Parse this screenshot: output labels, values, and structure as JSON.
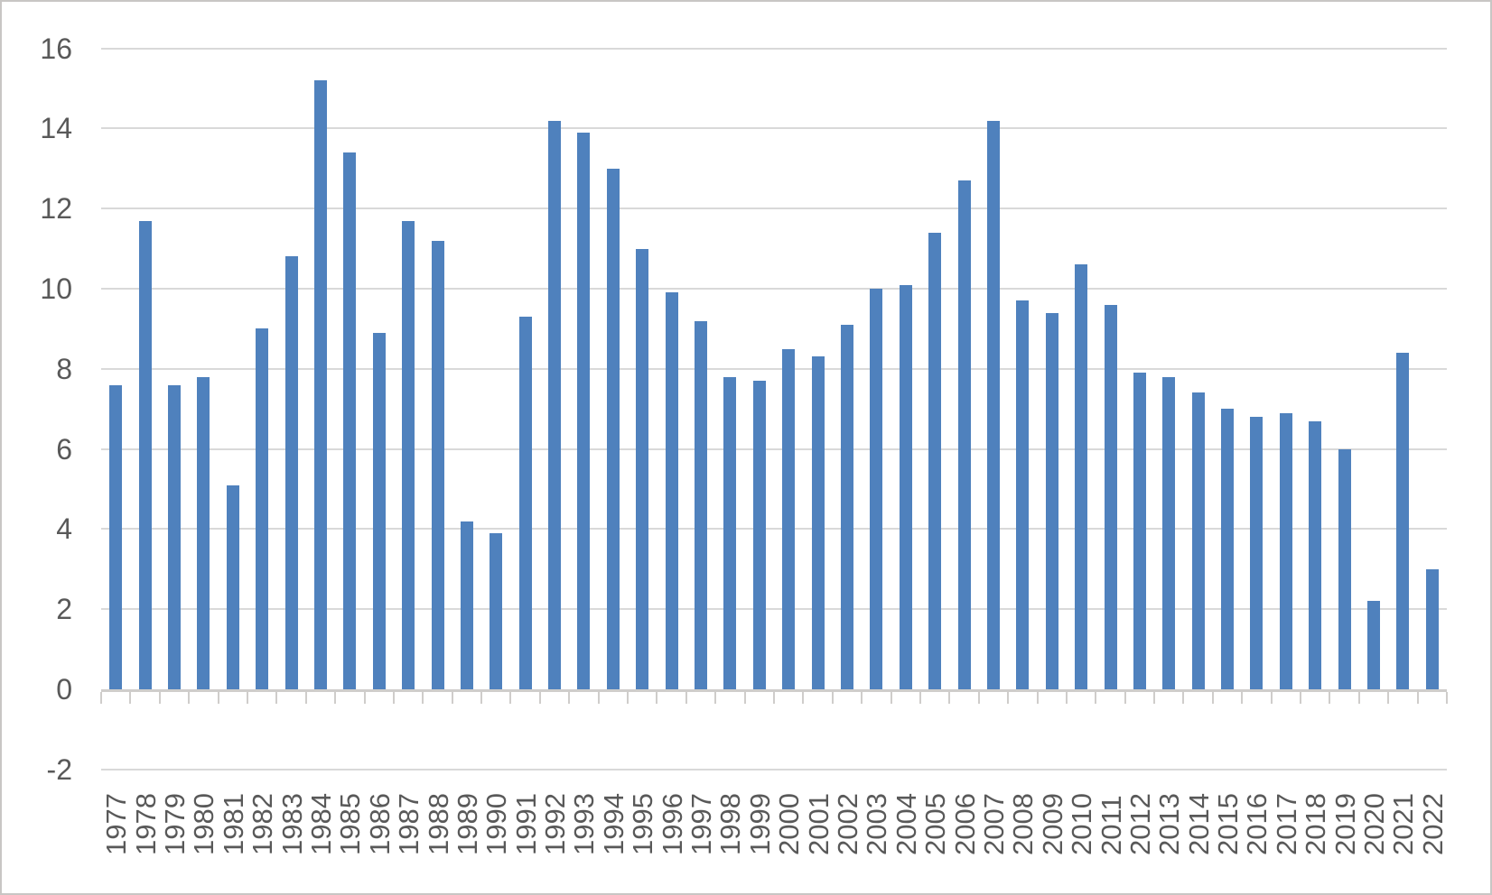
{
  "colors": {
    "bar_fill": "#4F81BD",
    "gridline": "#D9D9D9",
    "axis_line": "#CFCDCB",
    "tick_mark": "#CFCDCB",
    "label_text": "#595959",
    "frame_border": "#C8C6C4",
    "background": "#FFFFFF"
  },
  "chart_data": {
    "type": "bar",
    "title": "",
    "xlabel": "",
    "ylabel": "",
    "categories": [
      "1977",
      "1978",
      "1979",
      "1980",
      "1981",
      "1982",
      "1983",
      "1984",
      "1985",
      "1986",
      "1987",
      "1988",
      "1989",
      "1990",
      "1991",
      "1992",
      "1993",
      "1994",
      "1995",
      "1996",
      "1997",
      "1998",
      "1999",
      "2000",
      "2001",
      "2002",
      "2003",
      "2004",
      "2005",
      "2006",
      "2007",
      "2008",
      "2009",
      "2010",
      "2011",
      "2012",
      "2013",
      "2014",
      "2015",
      "2016",
      "2017",
      "2018",
      "2019",
      "2020",
      "2021",
      "2022"
    ],
    "values": [
      7.6,
      11.7,
      7.6,
      7.8,
      5.1,
      9.0,
      10.8,
      15.2,
      13.4,
      8.9,
      11.7,
      11.2,
      4.2,
      3.9,
      9.3,
      14.2,
      13.9,
      13.0,
      11.0,
      9.9,
      9.2,
      7.8,
      7.7,
      8.5,
      8.3,
      9.1,
      10.0,
      10.1,
      11.4,
      12.7,
      14.2,
      9.7,
      9.4,
      10.6,
      9.6,
      7.9,
      7.8,
      7.4,
      7.0,
      6.8,
      6.9,
      6.7,
      6.0,
      2.2,
      8.4,
      3.0
    ],
    "y_ticks": [
      16,
      14,
      12,
      10,
      8,
      6,
      4,
      2,
      0,
      -2
    ],
    "y_tick_labels": [
      "16",
      "14",
      "12",
      "10",
      "8",
      "6",
      "4",
      "2",
      "0",
      "-2"
    ],
    "ylim": [
      -2,
      16
    ],
    "grid": true,
    "legend": false,
    "x_tick_label_rotation": -90,
    "single_series": true,
    "series_color_name": "steel-blue"
  }
}
